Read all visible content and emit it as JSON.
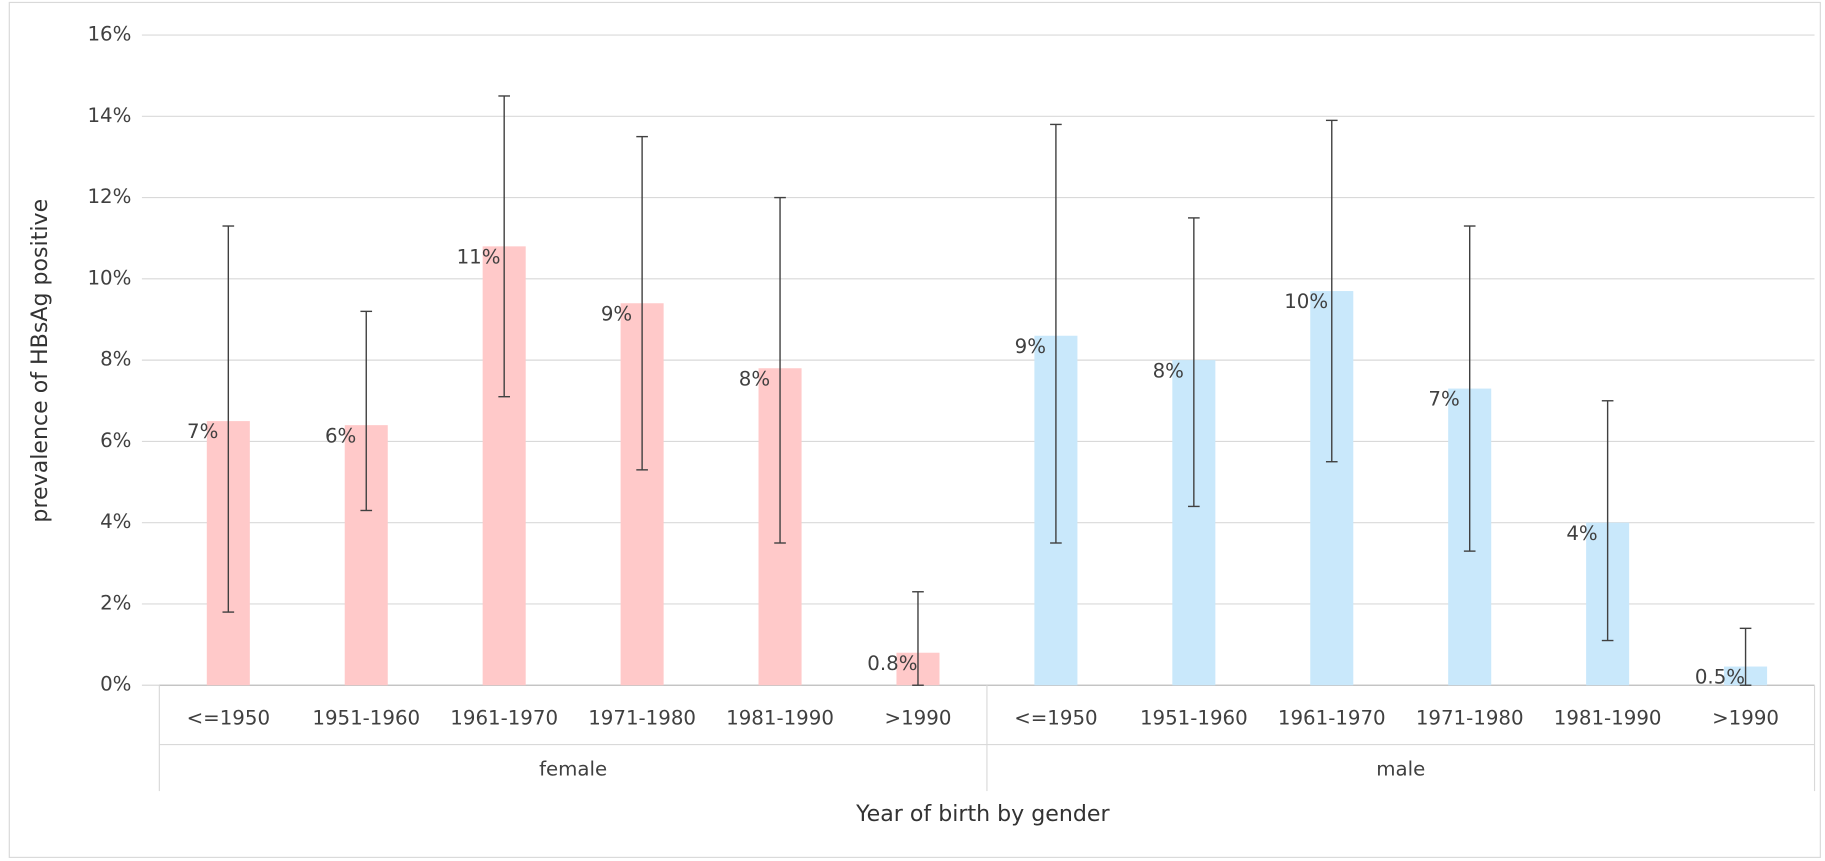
{
  "chart_data": {
    "type": "bar",
    "y_label": "prevalence of HBsAg positive",
    "x_label": "Year of birth by gender",
    "categories": [
      "<=1950",
      "1951-1960",
      "1961-1970",
      "1971-1980",
      "1981-1990",
      ">1990"
    ],
    "series": [
      {
        "name": "female",
        "color": "#ffc9c9",
        "values": [
          6.5,
          6.4,
          10.8,
          9.4,
          7.8,
          0.8
        ],
        "value_labels": [
          "7%",
          "6%",
          "11%",
          "9%",
          "8%",
          "0.8%"
        ],
        "ci_lower": [
          1.8,
          4.3,
          7.1,
          5.3,
          3.5,
          0
        ],
        "ci_upper": [
          11.3,
          9.2,
          14.5,
          13.5,
          12.0,
          2.3
        ]
      },
      {
        "name": "male",
        "color": "#c9e8fb",
        "values": [
          8.6,
          8.0,
          9.7,
          7.3,
          4.0,
          0.46
        ],
        "value_labels": [
          "9%",
          "8%",
          "10%",
          "7%",
          "4%",
          "0.5%"
        ],
        "ci_lower": [
          3.5,
          4.4,
          5.5,
          3.3,
          1.1,
          0
        ],
        "ci_upper": [
          13.8,
          11.5,
          13.9,
          11.3,
          7.0,
          1.4
        ]
      }
    ],
    "error_bar_color": "#404040",
    "ylim": [
      0,
      16
    ],
    "yticks": [
      {
        "value": 0,
        "label": "0%"
      },
      {
        "value": 2,
        "label": "2%"
      },
      {
        "value": 4,
        "label": "4%"
      },
      {
        "value": 6,
        "label": "6%"
      },
      {
        "value": 8,
        "label": "8%"
      },
      {
        "value": 10,
        "label": "10%"
      },
      {
        "value": 12,
        "label": "12%"
      },
      {
        "value": 14,
        "label": "14%"
      },
      {
        "value": 16,
        "label": "16%"
      }
    ],
    "grid": true
  }
}
